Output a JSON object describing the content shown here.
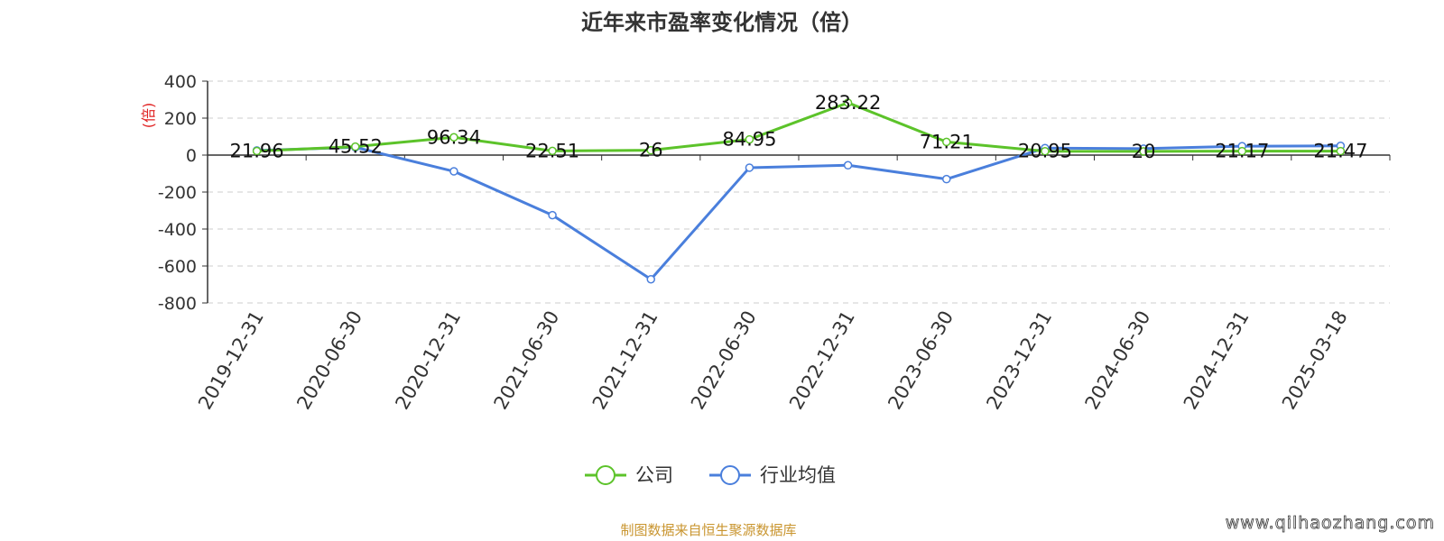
{
  "chart_data": {
    "type": "line",
    "title": "近年来市盈率变化情况（倍）",
    "ylabel": "(倍)",
    "xlabel": "",
    "categories": [
      "2019-12-31",
      "2020-06-30",
      "2020-12-31",
      "2021-06-30",
      "2021-12-31",
      "2022-06-30",
      "2022-12-31",
      "2023-06-30",
      "2023-12-31",
      "2024-06-30",
      "2024-12-31",
      "2025-03-18"
    ],
    "ylim": [
      -800,
      400
    ],
    "yticks": [
      400,
      200,
      0,
      -200,
      -400,
      -600,
      -800
    ],
    "grid": true,
    "legend_position": "bottom-center",
    "series": [
      {
        "name": "公司",
        "color": "#5cc32a",
        "values": [
          21.96,
          45.52,
          96.34,
          22.51,
          26,
          84.95,
          283.22,
          71.21,
          20.95,
          20,
          21.17,
          21.47
        ],
        "labels": [
          "21.96",
          "45.52",
          "96.34",
          "22.51",
          "26",
          "84.95",
          "283.22",
          "71.21",
          "20.95",
          "20",
          "21.17",
          "21.47"
        ]
      },
      {
        "name": "行业均值",
        "color": "#4a7fdc",
        "values": [
          25,
          42,
          -88,
          -325,
          -672,
          -68,
          -55,
          -130,
          38,
          35,
          48,
          50
        ]
      }
    ]
  },
  "source_text": "制图数据来自恒生聚源数据库",
  "watermark": "www.qilhaozhang.com"
}
